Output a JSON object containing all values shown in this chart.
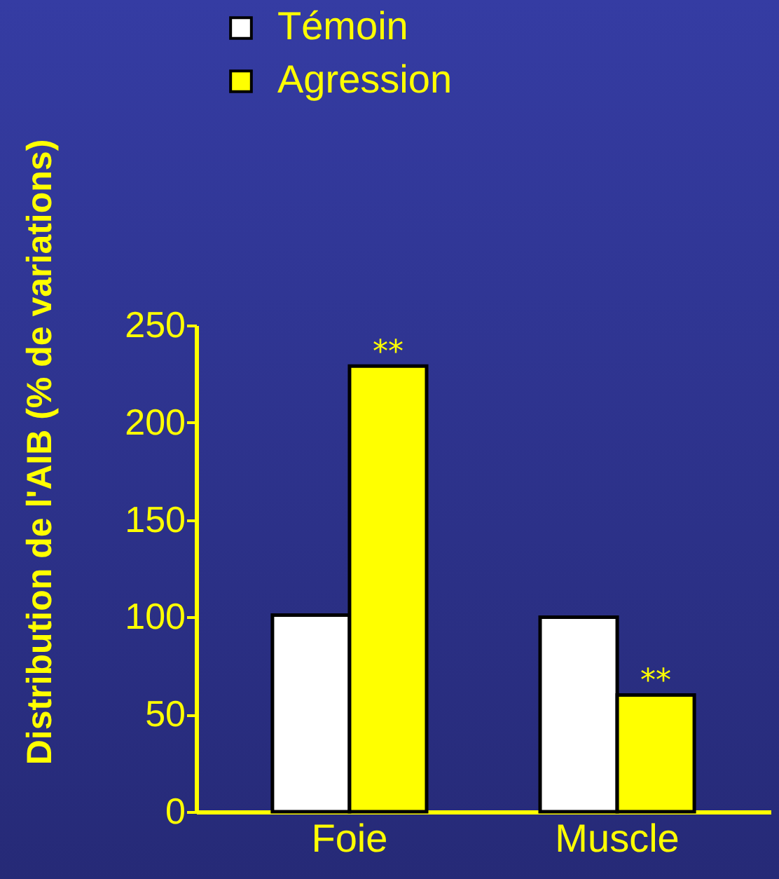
{
  "chart_data": {
    "type": "bar",
    "ylabel": "Distribution de l'AIB (% de variations)",
    "categories": [
      "Foie",
      "Muscle"
    ],
    "series": [
      {
        "name": "Témoin",
        "color": "#ffffff",
        "values": [
          101,
          100
        ]
      },
      {
        "name": "Agression",
        "color": "#ffff00",
        "values": [
          229,
          60
        ]
      }
    ],
    "ylim": [
      0,
      250
    ],
    "yticks": [
      0,
      50,
      100,
      150,
      200,
      250
    ],
    "grid": false,
    "legend": "top left",
    "annotations": [
      {
        "text": "**",
        "x": "Foie",
        "y": 229
      },
      {
        "text": "**",
        "x": "Muscle",
        "y": 60
      }
    ]
  }
}
